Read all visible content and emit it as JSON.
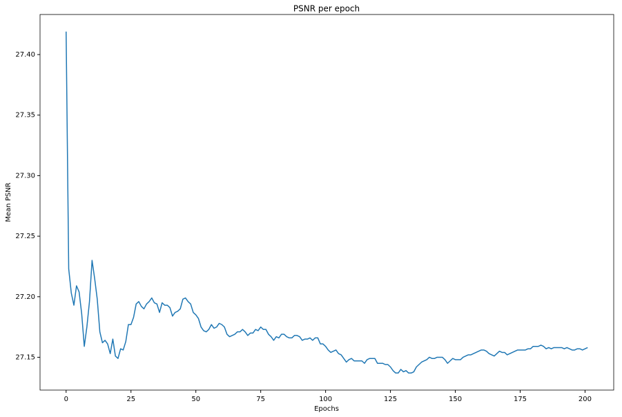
{
  "chart_data": {
    "type": "line",
    "title": "PSNR per epoch",
    "xlabel": "Epochs",
    "ylabel": "Mean PSNR",
    "xlim": [
      -10.05,
      211.05
    ],
    "ylim": [
      27.1229,
      27.4331
    ],
    "xticks": [
      0,
      25,
      50,
      75,
      100,
      125,
      150,
      175,
      200
    ],
    "yticks": [
      27.15,
      {
        "value": 27.2,
        "label": "27.20"
      },
      27.25,
      {
        "value": 27.3,
        "label": "27.30"
      },
      27.35,
      {
        "value": 27.4,
        "label": "27.40"
      }
    ],
    "grid": false,
    "x": [
      0,
      1,
      2,
      3,
      4,
      5,
      6,
      7,
      8,
      9,
      10,
      11,
      12,
      13,
      14,
      15,
      16,
      17,
      18,
      19,
      20,
      21,
      22,
      23,
      24,
      25,
      26,
      27,
      28,
      29,
      30,
      31,
      32,
      33,
      34,
      35,
      36,
      37,
      38,
      39,
      40,
      41,
      42,
      43,
      44,
      45,
      46,
      47,
      48,
      49,
      50,
      51,
      52,
      53,
      54,
      55,
      56,
      57,
      58,
      59,
      60,
      61,
      62,
      63,
      64,
      65,
      66,
      67,
      68,
      69,
      70,
      71,
      72,
      73,
      74,
      75,
      76,
      77,
      78,
      79,
      80,
      81,
      82,
      83,
      84,
      85,
      86,
      87,
      88,
      89,
      90,
      91,
      92,
      93,
      94,
      95,
      96,
      97,
      98,
      99,
      100,
      101,
      102,
      103,
      104,
      105,
      106,
      107,
      108,
      109,
      110,
      111,
      112,
      113,
      114,
      115,
      116,
      117,
      118,
      119,
      120,
      121,
      122,
      123,
      124,
      125,
      126,
      127,
      128,
      129,
      130,
      131,
      132,
      133,
      134,
      135,
      136,
      137,
      138,
      139,
      140,
      141,
      142,
      143,
      144,
      145,
      146,
      147,
      148,
      149,
      150,
      151,
      152,
      153,
      154,
      155,
      156,
      157,
      158,
      159,
      160,
      161,
      162,
      163,
      164,
      165,
      166,
      167,
      168,
      169,
      170,
      171,
      172,
      173,
      174,
      175,
      176,
      177,
      178,
      179,
      180,
      181,
      182,
      183,
      184,
      185,
      186,
      187,
      188,
      189,
      190,
      191,
      192,
      193,
      194,
      195,
      196,
      197,
      198,
      199,
      200,
      201
    ],
    "series": [
      {
        "color": "#1f77b4",
        "values": [
          27.419,
          27.223,
          27.203,
          27.193,
          27.209,
          27.204,
          27.186,
          27.159,
          27.175,
          27.196,
          27.23,
          27.215,
          27.198,
          27.171,
          27.162,
          27.164,
          27.161,
          27.153,
          27.165,
          27.151,
          27.149,
          27.157,
          27.156,
          27.163,
          27.177,
          27.177,
          27.183,
          27.194,
          27.196,
          27.192,
          27.19,
          27.194,
          27.196,
          27.199,
          27.195,
          27.194,
          27.187,
          27.195,
          27.193,
          27.193,
          27.191,
          27.184,
          27.187,
          27.188,
          27.19,
          27.198,
          27.199,
          27.196,
          27.194,
          27.187,
          27.185,
          27.182,
          27.175,
          27.172,
          27.171,
          27.173,
          27.177,
          27.174,
          27.175,
          27.178,
          27.177,
          27.175,
          27.169,
          27.167,
          27.168,
          27.169,
          27.171,
          27.171,
          27.173,
          27.171,
          27.168,
          27.17,
          27.17,
          27.173,
          27.172,
          27.175,
          27.173,
          27.173,
          27.169,
          27.167,
          27.164,
          27.167,
          27.166,
          27.169,
          27.169,
          27.167,
          27.166,
          27.166,
          27.168,
          27.168,
          27.167,
          27.164,
          27.165,
          27.165,
          27.166,
          27.164,
          27.166,
          27.166,
          27.161,
          27.161,
          27.159,
          27.156,
          27.154,
          27.155,
          27.156,
          27.153,
          27.152,
          27.149,
          27.146,
          27.148,
          27.149,
          27.147,
          27.147,
          27.147,
          27.147,
          27.145,
          27.148,
          27.149,
          27.149,
          27.149,
          27.145,
          27.145,
          27.145,
          27.144,
          27.144,
          27.142,
          27.139,
          27.137,
          27.137,
          27.14,
          27.138,
          27.139,
          27.137,
          27.137,
          27.138,
          27.142,
          27.144,
          27.146,
          27.147,
          27.148,
          27.15,
          27.149,
          27.149,
          27.15,
          27.15,
          27.15,
          27.148,
          27.145,
          27.147,
          27.149,
          27.148,
          27.148,
          27.148,
          27.15,
          27.151,
          27.152,
          27.152,
          27.153,
          27.154,
          27.155,
          27.156,
          27.156,
          27.155,
          27.153,
          27.152,
          27.151,
          27.153,
          27.155,
          27.154,
          27.154,
          27.152,
          27.153,
          27.154,
          27.155,
          27.156,
          27.156,
          27.156,
          27.156,
          27.157,
          27.157,
          27.159,
          27.159,
          27.159,
          27.16,
          27.159,
          27.157,
          27.158,
          27.157,
          27.158,
          27.158,
          27.158,
          27.158,
          27.157,
          27.158,
          27.157,
          27.156,
          27.156,
          27.157,
          27.157,
          27.156,
          27.157,
          27.158
        ]
      }
    ]
  }
}
